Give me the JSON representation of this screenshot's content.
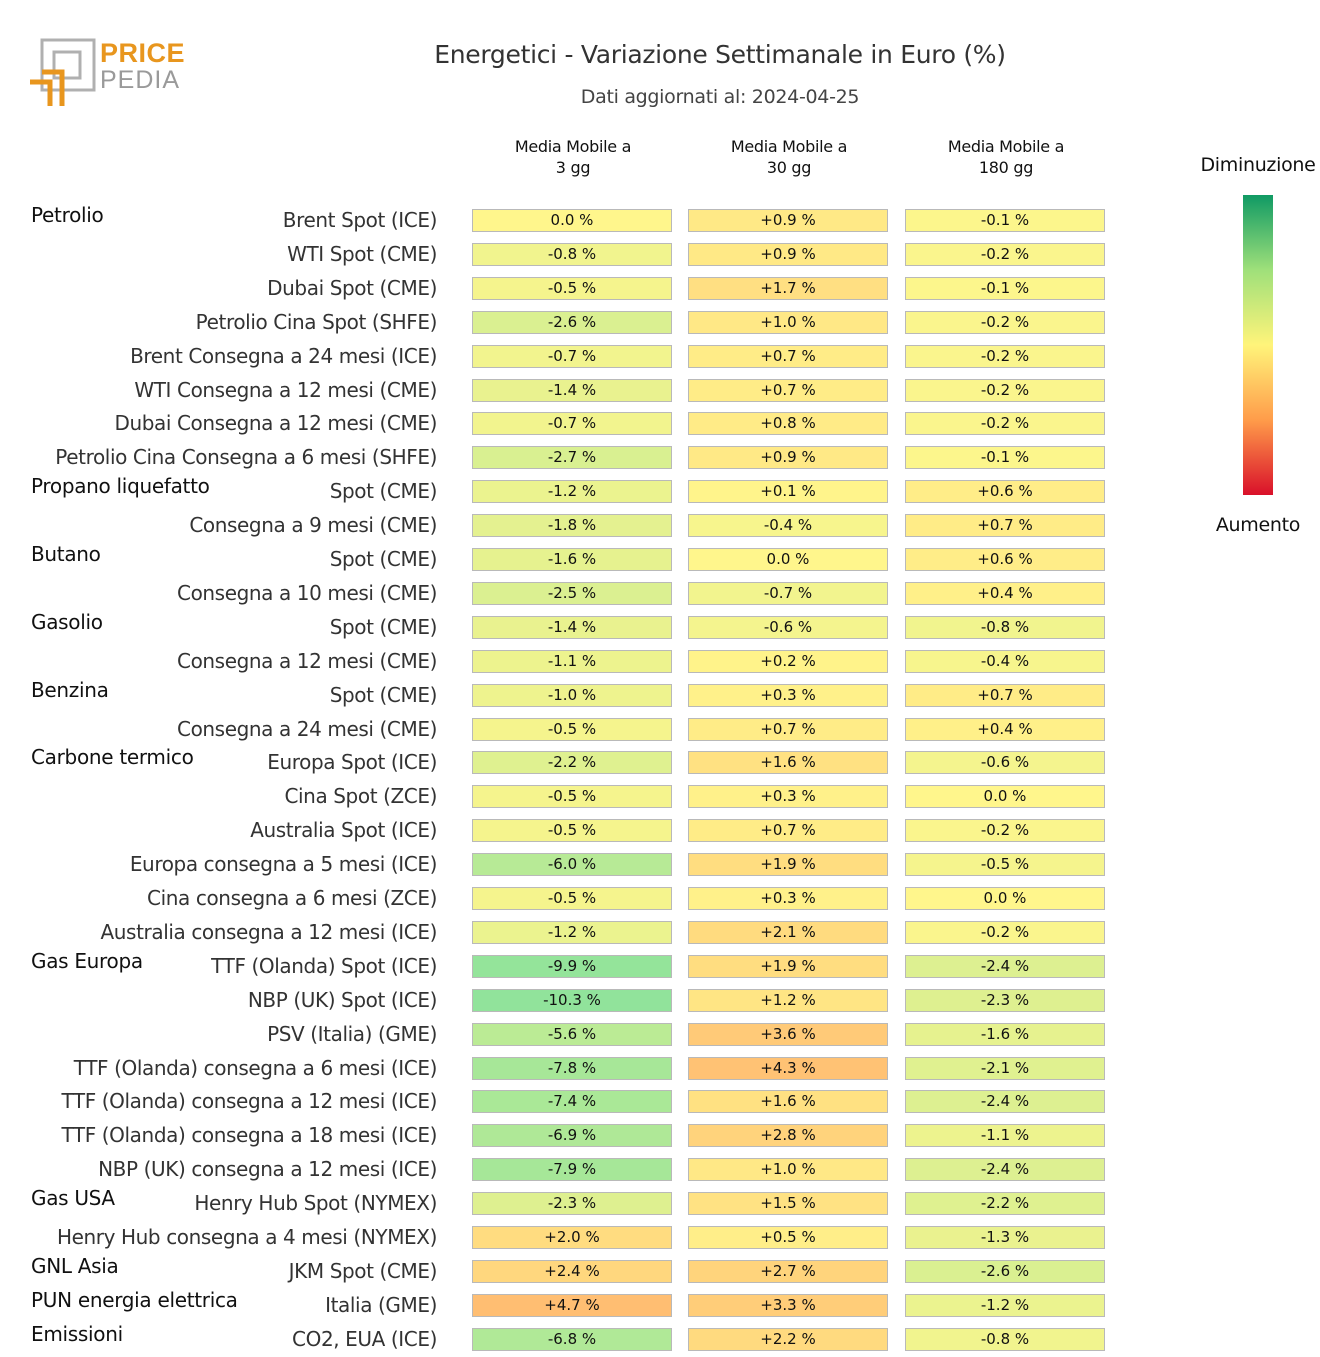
{
  "brand": {
    "line1": "PRICE",
    "line2": "PEDIA"
  },
  "colors": {
    "green": "#109a64",
    "yellow": "#fff47a",
    "red": "#d9102a"
  },
  "chart_data": {
    "type": "table",
    "title": "Energetici - Variazione Settimanale in Euro (%)",
    "subtitle": "Dati aggiornati al: 2024-04-25",
    "columns": [
      "Media Mobile a\n3 gg",
      "Media Mobile a\n30 gg",
      "Media Mobile a\n180 gg"
    ],
    "legend": {
      "top": "Diminuzione",
      "bottom": "Aumento"
    },
    "rows": [
      {
        "group": "Petrolio",
        "label": "Brent Spot (ICE)",
        "values": [
          0.0,
          0.9,
          -0.1
        ]
      },
      {
        "group": "",
        "label": "WTI Spot (CME)",
        "values": [
          -0.8,
          0.9,
          -0.2
        ]
      },
      {
        "group": "",
        "label": "Dubai Spot (CME)",
        "values": [
          -0.5,
          1.7,
          -0.1
        ]
      },
      {
        "group": "",
        "label": "Petrolio Cina Spot (SHFE)",
        "values": [
          -2.6,
          1.0,
          -0.2
        ]
      },
      {
        "group": "",
        "label": "Brent Consegna a 24 mesi (ICE)",
        "values": [
          -0.7,
          0.7,
          -0.2
        ]
      },
      {
        "group": "",
        "label": "WTI Consegna a 12 mesi (CME)",
        "values": [
          -1.4,
          0.7,
          -0.2
        ]
      },
      {
        "group": "",
        "label": "Dubai Consegna a 12 mesi (CME)",
        "values": [
          -0.7,
          0.8,
          -0.2
        ]
      },
      {
        "group": "",
        "label": "Petrolio Cina Consegna a 6 mesi (SHFE)",
        "values": [
          -2.7,
          0.9,
          -0.1
        ]
      },
      {
        "group": "Propano liquefatto",
        "label": "Spot (CME)",
        "values": [
          -1.2,
          0.1,
          0.6
        ]
      },
      {
        "group": "",
        "label": "Consegna a 9 mesi (CME)",
        "values": [
          -1.8,
          -0.4,
          0.7
        ]
      },
      {
        "group": "Butano",
        "label": "Spot (CME)",
        "values": [
          -1.6,
          0.0,
          0.6
        ]
      },
      {
        "group": "",
        "label": "Consegna a 10 mesi (CME)",
        "values": [
          -2.5,
          -0.7,
          0.4
        ]
      },
      {
        "group": "Gasolio",
        "label": "Spot (CME)",
        "values": [
          -1.4,
          -0.6,
          -0.8
        ]
      },
      {
        "group": "",
        "label": "Consegna a 12 mesi (CME)",
        "values": [
          -1.1,
          0.2,
          -0.4
        ]
      },
      {
        "group": "Benzina",
        "label": "Spot (CME)",
        "values": [
          -1.0,
          0.3,
          0.7
        ]
      },
      {
        "group": "",
        "label": "Consegna a 24 mesi (CME)",
        "values": [
          -0.5,
          0.7,
          0.4
        ]
      },
      {
        "group": "Carbone termico",
        "label": "Europa Spot (ICE)",
        "values": [
          -2.2,
          1.6,
          -0.6
        ]
      },
      {
        "group": "",
        "label": "Cina Spot (ZCE)",
        "values": [
          -0.5,
          0.3,
          0.0
        ]
      },
      {
        "group": "",
        "label": "Australia Spot (ICE)",
        "values": [
          -0.5,
          0.7,
          -0.2
        ]
      },
      {
        "group": "",
        "label": "Europa consegna a 5 mesi (ICE)",
        "values": [
          -6.0,
          1.9,
          -0.5
        ]
      },
      {
        "group": "",
        "label": "Cina consegna a 6 mesi (ZCE)",
        "values": [
          -0.5,
          0.3,
          0.0
        ]
      },
      {
        "group": "",
        "label": "Australia consegna a 12 mesi (ICE)",
        "values": [
          -1.2,
          2.1,
          -0.2
        ]
      },
      {
        "group": "Gas Europa",
        "label": "TTF (Olanda) Spot (ICE)",
        "values": [
          -9.9,
          1.9,
          -2.4
        ]
      },
      {
        "group": "",
        "label": "NBP (UK) Spot (ICE)",
        "values": [
          -10.3,
          1.2,
          -2.3
        ]
      },
      {
        "group": "",
        "label": "PSV (Italia) (GME)",
        "values": [
          -5.6,
          3.6,
          -1.6
        ]
      },
      {
        "group": "",
        "label": "TTF (Olanda) consegna a 6 mesi (ICE)",
        "values": [
          -7.8,
          4.3,
          -2.1
        ]
      },
      {
        "group": "",
        "label": "TTF (Olanda) consegna a 12 mesi (ICE)",
        "values": [
          -7.4,
          1.6,
          -2.4
        ]
      },
      {
        "group": "",
        "label": "TTF (Olanda) consegna a 18 mesi (ICE)",
        "values": [
          -6.9,
          2.8,
          -1.1
        ]
      },
      {
        "group": "",
        "label": "NBP (UK) consegna a 12 mesi (ICE)",
        "values": [
          -7.9,
          1.0,
          -2.4
        ]
      },
      {
        "group": "Gas USA",
        "label": "Henry Hub Spot (NYMEX)",
        "values": [
          -2.3,
          1.5,
          -2.2
        ]
      },
      {
        "group": "",
        "label": "Henry Hub consegna a 4 mesi (NYMEX)",
        "values": [
          2.0,
          0.5,
          -1.3
        ]
      },
      {
        "group": "GNL Asia",
        "label": "JKM Spot (CME)",
        "values": [
          2.4,
          2.7,
          -2.6
        ]
      },
      {
        "group": "PUN energia elettrica",
        "label": "Italia (GME)",
        "values": [
          4.7,
          3.3,
          -1.2
        ]
      },
      {
        "group": "Emissioni",
        "label": "CO2, EUA (ICE)",
        "values": [
          -6.8,
          2.2,
          -0.8
        ]
      }
    ]
  }
}
